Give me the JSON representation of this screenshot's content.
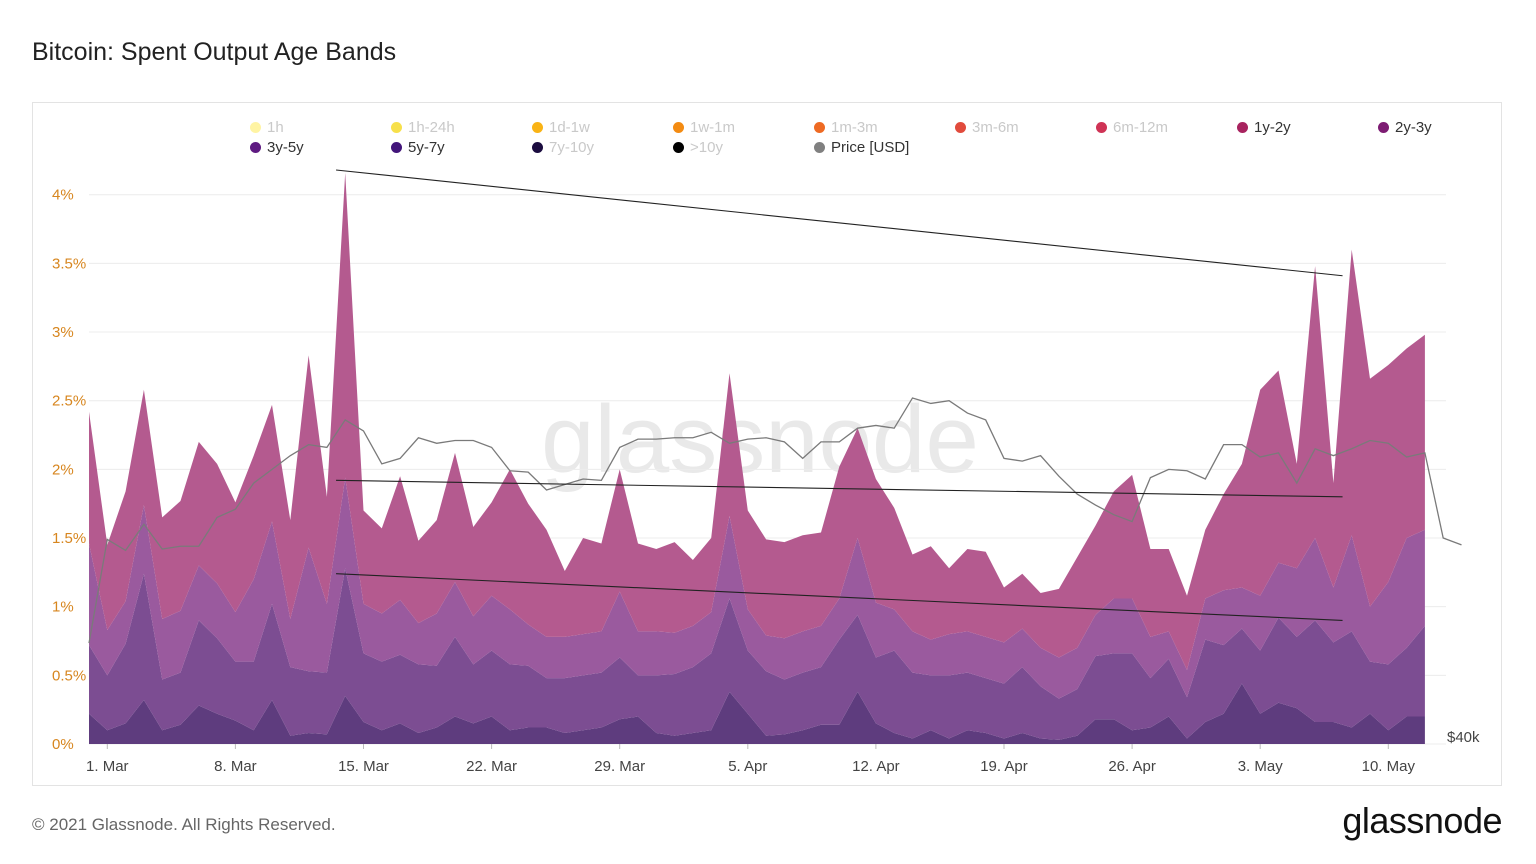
{
  "title": "Bitcoin: Spent Output Age Bands",
  "footer": "© 2021 Glassnode. All Rights Reserved.",
  "brand": "glassnode",
  "watermark": "glassnode",
  "legend": [
    {
      "label": "1h",
      "color": "#fff4a3",
      "active": false
    },
    {
      "label": "1h-24h",
      "color": "#f7e04b",
      "active": false
    },
    {
      "label": "1d-1w",
      "color": "#f9b315",
      "active": false
    },
    {
      "label": "1w-1m",
      "color": "#f38b12",
      "active": false
    },
    {
      "label": "1m-3m",
      "color": "#ee6a23",
      "active": false
    },
    {
      "label": "3m-6m",
      "color": "#e14b3c",
      "active": false
    },
    {
      "label": "6m-12m",
      "color": "#cf3355",
      "active": false
    },
    {
      "label": "1y-2y",
      "color": "#a8235f",
      "active": true
    },
    {
      "label": "2y-3y",
      "color": "#7d1c73",
      "active": true
    },
    {
      "label": "3y-5y",
      "color": "#5e1a81",
      "active": true
    },
    {
      "label": "5y-7y",
      "color": "#42157a",
      "active": true
    },
    {
      "label": "7y-10y",
      "color": "#1b0c3f",
      "active": false
    },
    {
      "label": ">10y",
      "color": "#000000",
      "active": false
    },
    {
      "label": "Price [USD]",
      "color": "#808080",
      "active": true
    }
  ],
  "chart_data": {
    "type": "area",
    "stacked": true,
    "x_start": "2021-02-28",
    "x_step_days": 1,
    "xtick_labels": [
      "1. Mar",
      "8. Mar",
      "15. Mar",
      "22. Mar",
      "29. Mar",
      "5. Apr",
      "12. Apr",
      "19. Apr",
      "26. Apr",
      "3. May",
      "10. May"
    ],
    "ytick_labels": [
      "0%",
      "0.5%",
      "1%",
      "1.5%",
      "2%",
      "2.5%",
      "3%",
      "3.5%",
      "4%"
    ],
    "ylim": [
      0,
      4.1
    ],
    "right_axis_label": "$40k",
    "grid": true,
    "series": [
      {
        "name": "5y-7y",
        "color": "#5e3c7e",
        "values": [
          0.22,
          0.1,
          0.15,
          0.32,
          0.1,
          0.14,
          0.28,
          0.22,
          0.17,
          0.1,
          0.32,
          0.06,
          0.08,
          0.07,
          0.35,
          0.16,
          0.1,
          0.15,
          0.08,
          0.12,
          0.2,
          0.15,
          0.2,
          0.1,
          0.12,
          0.12,
          0.08,
          0.1,
          0.12,
          0.18,
          0.2,
          0.08,
          0.06,
          0.08,
          0.1,
          0.38,
          0.22,
          0.06,
          0.07,
          0.1,
          0.14,
          0.14,
          0.38,
          0.15,
          0.08,
          0.04,
          0.1,
          0.04,
          0.1,
          0.08,
          0.04,
          0.08,
          0.04,
          0.03,
          0.06,
          0.18,
          0.18,
          0.1,
          0.12,
          0.2,
          0.04,
          0.16,
          0.22,
          0.44,
          0.22,
          0.3,
          0.26,
          0.16,
          0.16,
          0.12,
          0.22,
          0.1,
          0.2,
          0.2
        ]
      },
      {
        "name": "3y-5y",
        "color": "#7c4d92",
        "values": [
          0.5,
          0.4,
          0.58,
          0.92,
          0.37,
          0.38,
          0.62,
          0.55,
          0.43,
          0.5,
          0.7,
          0.5,
          0.45,
          0.45,
          0.93,
          0.5,
          0.5,
          0.5,
          0.5,
          0.45,
          0.58,
          0.43,
          0.48,
          0.48,
          0.45,
          0.36,
          0.4,
          0.4,
          0.4,
          0.45,
          0.3,
          0.42,
          0.45,
          0.48,
          0.56,
          0.68,
          0.46,
          0.47,
          0.4,
          0.42,
          0.42,
          0.62,
          0.56,
          0.48,
          0.6,
          0.48,
          0.4,
          0.46,
          0.42,
          0.4,
          0.4,
          0.48,
          0.38,
          0.3,
          0.34,
          0.46,
          0.48,
          0.56,
          0.36,
          0.42,
          0.3,
          0.6,
          0.5,
          0.4,
          0.46,
          0.62,
          0.52,
          0.74,
          0.58,
          0.7,
          0.38,
          0.48,
          0.5,
          0.66
        ]
      },
      {
        "name": "2y-3y",
        "color": "#9a5a9e",
        "values": [
          0.74,
          0.33,
          0.31,
          0.5,
          0.44,
          0.45,
          0.4,
          0.4,
          0.36,
          0.6,
          0.6,
          0.35,
          0.9,
          0.5,
          0.66,
          0.36,
          0.35,
          0.4,
          0.3,
          0.38,
          0.4,
          0.35,
          0.4,
          0.4,
          0.3,
          0.3,
          0.3,
          0.3,
          0.3,
          0.48,
          0.32,
          0.32,
          0.3,
          0.3,
          0.3,
          0.6,
          0.3,
          0.26,
          0.3,
          0.3,
          0.3,
          0.3,
          0.56,
          0.4,
          0.3,
          0.3,
          0.26,
          0.3,
          0.3,
          0.3,
          0.3,
          0.28,
          0.28,
          0.3,
          0.3,
          0.3,
          0.4,
          0.4,
          0.3,
          0.2,
          0.2,
          0.3,
          0.4,
          0.3,
          0.4,
          0.4,
          0.5,
          0.6,
          0.4,
          0.7,
          0.4,
          0.6,
          0.8,
          0.7
        ]
      },
      {
        "name": "1y-2y",
        "color": "#b45a8f",
        "values": [
          0.96,
          0.62,
          0.8,
          0.84,
          0.74,
          0.8,
          0.9,
          0.87,
          0.8,
          0.9,
          0.85,
          0.72,
          1.4,
          0.78,
          2.22,
          0.68,
          0.62,
          0.9,
          0.6,
          0.68,
          0.94,
          0.65,
          0.68,
          1.02,
          0.88,
          0.78,
          0.48,
          0.7,
          0.64,
          0.89,
          0.64,
          0.6,
          0.66,
          0.48,
          0.54,
          1.04,
          0.72,
          0.7,
          0.7,
          0.7,
          0.68,
          0.96,
          0.8,
          0.9,
          0.74,
          0.56,
          0.68,
          0.48,
          0.6,
          0.62,
          0.4,
          0.4,
          0.4,
          0.5,
          0.66,
          0.65,
          0.78,
          0.9,
          0.64,
          0.6,
          0.54,
          0.5,
          0.7,
          0.9,
          1.5,
          1.4,
          0.76,
          1.98,
          0.76,
          2.08,
          1.66,
          1.58,
          1.38,
          1.42
        ]
      }
    ],
    "price": [
      1.47,
      2.98,
      2.82,
      3.2,
      2.84,
      2.88,
      2.88,
      3.3,
      3.42,
      3.8,
      4.0,
      4.2,
      4.36,
      4.32,
      4.72,
      4.56,
      4.08,
      4.16,
      4.46,
      4.38,
      4.42,
      4.42,
      4.32,
      3.98,
      3.96,
      3.7,
      3.78,
      3.86,
      3.84,
      4.32,
      4.44,
      4.44,
      4.46,
      4.46,
      4.54,
      4.38,
      4.44,
      4.46,
      4.4,
      4.16,
      4.4,
      4.4,
      4.6,
      4.64,
      4.6,
      5.04,
      4.96,
      5.0,
      4.82,
      4.72,
      4.16,
      4.12,
      4.2,
      3.9,
      3.64,
      3.48,
      3.34,
      3.24,
      3.88,
      4.0,
      3.98,
      3.86,
      4.36,
      4.36,
      4.18,
      4.24,
      3.8,
      4.3,
      4.2,
      4.3,
      4.42,
      4.38,
      4.18,
      4.24,
      3.0,
      2.9
    ]
  },
  "trendlines": [
    {
      "from": [
        13.5,
        4.18
      ],
      "to": [
        68.5,
        3.41
      ]
    },
    {
      "from": [
        13.5,
        1.92
      ],
      "to": [
        68.5,
        1.8
      ]
    },
    {
      "from": [
        13.5,
        1.24
      ],
      "to": [
        68.5,
        0.9
      ]
    }
  ]
}
